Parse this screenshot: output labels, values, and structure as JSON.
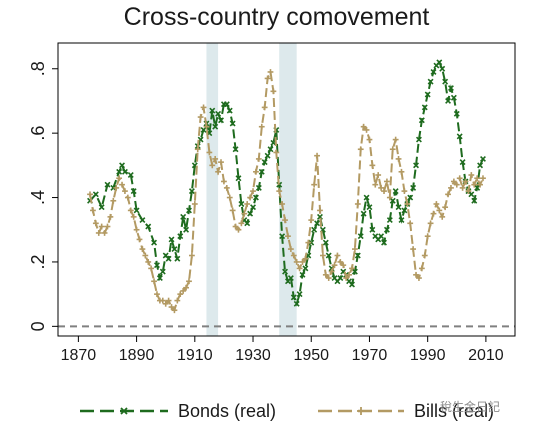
{
  "chart_data": {
    "type": "line",
    "title": "Cross-country comovement",
    "xlabel": "",
    "ylabel": "",
    "xlim": [
      1863,
      2020
    ],
    "ylim": [
      -0.03,
      0.88
    ],
    "x_ticks": [
      1870,
      1890,
      1910,
      1930,
      1950,
      1970,
      1990,
      2010
    ],
    "y_ticks": [
      0,
      0.2,
      0.4,
      0.6,
      0.8
    ],
    "y_tick_labels": [
      "0",
      ".2",
      ".4",
      ".6",
      ".8"
    ],
    "grid": false,
    "legend_position": "bottom",
    "shaded_periods": [
      [
        1914,
        1918
      ],
      [
        1939,
        1945
      ]
    ],
    "reference_line": {
      "y": 0,
      "style": "dashed",
      "color": "#808080"
    },
    "series": [
      {
        "name": "Bonds (real)",
        "color": "#1e6b1e",
        "marker": "x",
        "points": [
          [
            1874,
            0.39
          ],
          [
            1876,
            0.41
          ],
          [
            1878,
            0.37
          ],
          [
            1880,
            0.44
          ],
          [
            1882,
            0.43
          ],
          [
            1884,
            0.48
          ],
          [
            1885,
            0.5
          ],
          [
            1886,
            0.48
          ],
          [
            1888,
            0.47
          ],
          [
            1889,
            0.42
          ],
          [
            1890,
            0.36
          ],
          [
            1892,
            0.33
          ],
          [
            1894,
            0.31
          ],
          [
            1896,
            0.26
          ],
          [
            1897,
            0.19
          ],
          [
            1898,
            0.15
          ],
          [
            1899,
            0.17
          ],
          [
            1900,
            0.22
          ],
          [
            1901,
            0.21
          ],
          [
            1902,
            0.27
          ],
          [
            1903,
            0.24
          ],
          [
            1904,
            0.21
          ],
          [
            1905,
            0.28
          ],
          [
            1906,
            0.34
          ],
          [
            1907,
            0.3
          ],
          [
            1908,
            0.36
          ],
          [
            1909,
            0.42
          ],
          [
            1910,
            0.5
          ],
          [
            1911,
            0.56
          ],
          [
            1912,
            0.58
          ],
          [
            1913,
            0.61
          ],
          [
            1914,
            0.63
          ],
          [
            1915,
            0.6
          ],
          [
            1916,
            0.67
          ],
          [
            1917,
            0.62
          ],
          [
            1918,
            0.66
          ],
          [
            1919,
            0.64
          ],
          [
            1920,
            0.69
          ],
          [
            1921,
            0.69
          ],
          [
            1922,
            0.67
          ],
          [
            1923,
            0.63
          ],
          [
            1924,
            0.55
          ],
          [
            1925,
            0.46
          ],
          [
            1926,
            0.38
          ],
          [
            1927,
            0.33
          ],
          [
            1928,
            0.32
          ],
          [
            1929,
            0.35
          ],
          [
            1930,
            0.37
          ],
          [
            1931,
            0.4
          ],
          [
            1932,
            0.43
          ],
          [
            1933,
            0.48
          ],
          [
            1934,
            0.51
          ],
          [
            1935,
            0.53
          ],
          [
            1936,
            0.55
          ],
          [
            1937,
            0.57
          ],
          [
            1938,
            0.61
          ],
          [
            1939,
            0.44
          ],
          [
            1940,
            0.28
          ],
          [
            1941,
            0.17
          ],
          [
            1942,
            0.14
          ],
          [
            1943,
            0.15
          ],
          [
            1944,
            0.09
          ],
          [
            1945,
            0.07
          ],
          [
            1946,
            0.1
          ],
          [
            1947,
            0.16
          ],
          [
            1948,
            0.18
          ],
          [
            1949,
            0.22
          ],
          [
            1950,
            0.26
          ],
          [
            1951,
            0.3
          ],
          [
            1952,
            0.32
          ],
          [
            1953,
            0.34
          ],
          [
            1954,
            0.3
          ],
          [
            1955,
            0.26
          ],
          [
            1956,
            0.22
          ],
          [
            1957,
            0.18
          ],
          [
            1958,
            0.15
          ],
          [
            1959,
            0.14
          ],
          [
            1960,
            0.15
          ],
          [
            1961,
            0.17
          ],
          [
            1962,
            0.16
          ],
          [
            1963,
            0.14
          ],
          [
            1964,
            0.13
          ],
          [
            1965,
            0.17
          ],
          [
            1966,
            0.22
          ],
          [
            1967,
            0.28
          ],
          [
            1968,
            0.35
          ],
          [
            1969,
            0.4
          ],
          [
            1970,
            0.37
          ],
          [
            1971,
            0.3
          ],
          [
            1972,
            0.28
          ],
          [
            1973,
            0.27
          ],
          [
            1974,
            0.28
          ],
          [
            1975,
            0.26
          ],
          [
            1976,
            0.3
          ],
          [
            1977,
            0.33
          ],
          [
            1978,
            0.39
          ],
          [
            1979,
            0.42
          ],
          [
            1980,
            0.37
          ],
          [
            1981,
            0.33
          ],
          [
            1982,
            0.36
          ],
          [
            1983,
            0.38
          ],
          [
            1984,
            0.4
          ],
          [
            1985,
            0.43
          ],
          [
            1986,
            0.5
          ],
          [
            1987,
            0.58
          ],
          [
            1988,
            0.64
          ],
          [
            1989,
            0.68
          ],
          [
            1990,
            0.72
          ],
          [
            1991,
            0.76
          ],
          [
            1992,
            0.79
          ],
          [
            1993,
            0.81
          ],
          [
            1994,
            0.82
          ],
          [
            1995,
            0.8
          ],
          [
            1996,
            0.76
          ],
          [
            1997,
            0.7
          ],
          [
            1998,
            0.74
          ],
          [
            1999,
            0.71
          ],
          [
            2000,
            0.66
          ],
          [
            2001,
            0.59
          ],
          [
            2002,
            0.51
          ],
          [
            2003,
            0.45
          ],
          [
            2004,
            0.42
          ],
          [
            2005,
            0.41
          ],
          [
            2006,
            0.39
          ],
          [
            2007,
            0.43
          ],
          [
            2008,
            0.5
          ],
          [
            2009,
            0.52
          ]
        ]
      },
      {
        "name": "Bills (real)",
        "color": "#b39a63",
        "marker": "+",
        "points": [
          [
            1874,
            0.41
          ],
          [
            1875,
            0.36
          ],
          [
            1876,
            0.32
          ],
          [
            1877,
            0.29
          ],
          [
            1878,
            0.31
          ],
          [
            1879,
            0.29
          ],
          [
            1880,
            0.31
          ],
          [
            1881,
            0.34
          ],
          [
            1882,
            0.39
          ],
          [
            1883,
            0.43
          ],
          [
            1884,
            0.46
          ],
          [
            1885,
            0.44
          ],
          [
            1886,
            0.42
          ],
          [
            1887,
            0.4
          ],
          [
            1888,
            0.36
          ],
          [
            1889,
            0.34
          ],
          [
            1890,
            0.3
          ],
          [
            1891,
            0.27
          ],
          [
            1892,
            0.24
          ],
          [
            1893,
            0.22
          ],
          [
            1894,
            0.2
          ],
          [
            1895,
            0.18
          ],
          [
            1896,
            0.14
          ],
          [
            1897,
            0.1
          ],
          [
            1898,
            0.08
          ],
          [
            1899,
            0.08
          ],
          [
            1900,
            0.07
          ],
          [
            1901,
            0.08
          ],
          [
            1902,
            0.06
          ],
          [
            1903,
            0.05
          ],
          [
            1904,
            0.08
          ],
          [
            1905,
            0.1
          ],
          [
            1906,
            0.11
          ],
          [
            1907,
            0.12
          ],
          [
            1908,
            0.14
          ],
          [
            1909,
            0.22
          ],
          [
            1910,
            0.38
          ],
          [
            1911,
            0.55
          ],
          [
            1912,
            0.65
          ],
          [
            1913,
            0.68
          ],
          [
            1914,
            0.62
          ],
          [
            1915,
            0.54
          ],
          [
            1916,
            0.5
          ],
          [
            1917,
            0.52
          ],
          [
            1918,
            0.48
          ],
          [
            1919,
            0.51
          ],
          [
            1920,
            0.45
          ],
          [
            1921,
            0.43
          ],
          [
            1922,
            0.4
          ],
          [
            1923,
            0.36
          ],
          [
            1924,
            0.31
          ],
          [
            1925,
            0.3
          ],
          [
            1926,
            0.32
          ],
          [
            1927,
            0.35
          ],
          [
            1928,
            0.38
          ],
          [
            1929,
            0.4
          ],
          [
            1930,
            0.42
          ],
          [
            1931,
            0.48
          ],
          [
            1932,
            0.52
          ],
          [
            1933,
            0.62
          ],
          [
            1934,
            0.68
          ],
          [
            1935,
            0.77
          ],
          [
            1936,
            0.79
          ],
          [
            1937,
            0.73
          ],
          [
            1938,
            0.54
          ],
          [
            1939,
            0.42
          ],
          [
            1940,
            0.38
          ],
          [
            1941,
            0.33
          ],
          [
            1942,
            0.28
          ],
          [
            1943,
            0.24
          ],
          [
            1944,
            0.22
          ],
          [
            1945,
            0.2
          ],
          [
            1946,
            0.18
          ],
          [
            1947,
            0.2
          ],
          [
            1948,
            0.21
          ],
          [
            1949,
            0.26
          ],
          [
            1950,
            0.33
          ],
          [
            1951,
            0.44
          ],
          [
            1952,
            0.53
          ],
          [
            1953,
            0.36
          ],
          [
            1954,
            0.22
          ],
          [
            1955,
            0.16
          ],
          [
            1956,
            0.15
          ],
          [
            1957,
            0.17
          ],
          [
            1958,
            0.19
          ],
          [
            1959,
            0.22
          ],
          [
            1960,
            0.2
          ],
          [
            1961,
            0.19
          ],
          [
            1962,
            0.15
          ],
          [
            1963,
            0.16
          ],
          [
            1964,
            0.18
          ],
          [
            1965,
            0.24
          ],
          [
            1966,
            0.38
          ],
          [
            1967,
            0.55
          ],
          [
            1968,
            0.62
          ],
          [
            1969,
            0.61
          ],
          [
            1970,
            0.58
          ],
          [
            1971,
            0.5
          ],
          [
            1972,
            0.44
          ],
          [
            1973,
            0.47
          ],
          [
            1974,
            0.43
          ],
          [
            1975,
            0.42
          ],
          [
            1976,
            0.45
          ],
          [
            1977,
            0.4
          ],
          [
            1978,
            0.55
          ],
          [
            1979,
            0.58
          ],
          [
            1980,
            0.52
          ],
          [
            1981,
            0.48
          ],
          [
            1982,
            0.42
          ],
          [
            1983,
            0.38
          ],
          [
            1984,
            0.32
          ],
          [
            1985,
            0.24
          ],
          [
            1986,
            0.16
          ],
          [
            1987,
            0.15
          ],
          [
            1988,
            0.18
          ],
          [
            1989,
            0.22
          ],
          [
            1990,
            0.28
          ],
          [
            1991,
            0.32
          ],
          [
            1992,
            0.35
          ],
          [
            1993,
            0.38
          ],
          [
            1994,
            0.36
          ],
          [
            1995,
            0.34
          ],
          [
            1996,
            0.37
          ],
          [
            1997,
            0.41
          ],
          [
            1998,
            0.43
          ],
          [
            1999,
            0.45
          ],
          [
            2000,
            0.44
          ],
          [
            2001,
            0.46
          ],
          [
            2002,
            0.43
          ],
          [
            2003,
            0.45
          ],
          [
            2004,
            0.42
          ],
          [
            2005,
            0.47
          ],
          [
            2006,
            0.44
          ],
          [
            2007,
            0.46
          ],
          [
            2008,
            0.44
          ],
          [
            2009,
            0.46
          ]
        ]
      }
    ]
  },
  "watermark": {
    "text": "稅生金日記"
  },
  "colors": {
    "shading": "#dde9ec",
    "axis": "#000000",
    "reference_line": "#808080"
  }
}
